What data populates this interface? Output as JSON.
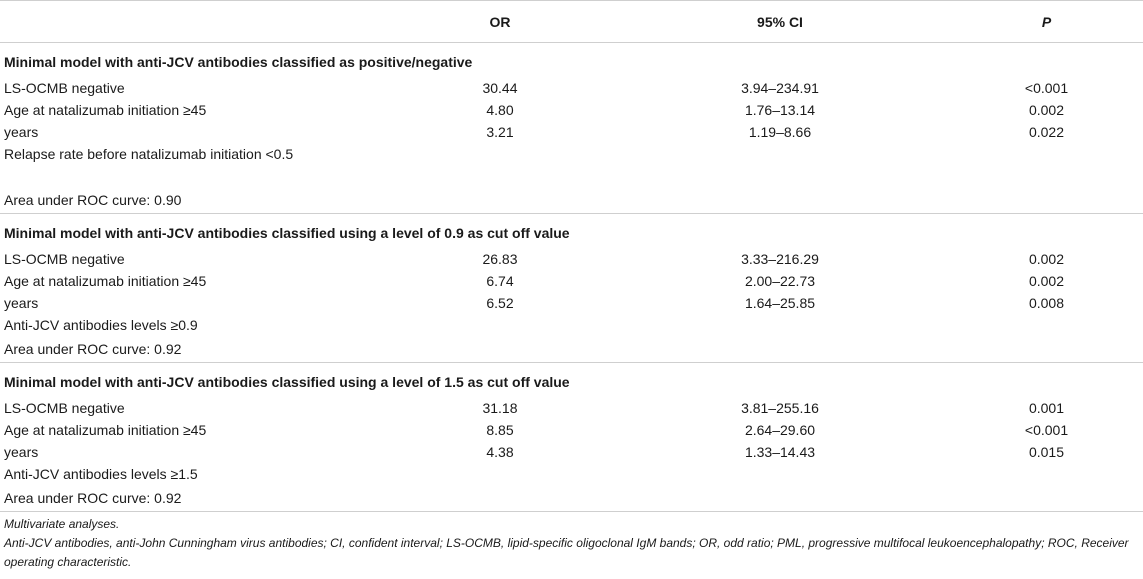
{
  "header": {
    "col0": "",
    "col1": "OR",
    "col2": "95% CI",
    "col3": "P"
  },
  "sections": [
    {
      "title": "Minimal model with anti-JCV antibodies classified as positive/negative",
      "rows": [
        {
          "label": "LS-OCMB negative",
          "or": "30.44",
          "ci": "3.94–234.91",
          "p": "<0.001"
        },
        {
          "label": "Age at natalizumab initiation ≥45",
          "or": "4.80",
          "ci": "1.76–13.14",
          "p": "0.002"
        },
        {
          "label": "years",
          "or": "3.21",
          "ci": "1.19–8.66",
          "p": "0.022"
        },
        {
          "label": "Relapse rate before natalizumab initiation <0.5",
          "or": "",
          "ci": "",
          "p": ""
        }
      ],
      "auc": "Area under ROC curve: 0.90"
    },
    {
      "title": "Minimal model with anti-JCV antibodies classified using a level of 0.9 as cut off value",
      "rows": [
        {
          "label": "LS-OCMB negative",
          "or": "26.83",
          "ci": "3.33–216.29",
          "p": "0.002"
        },
        {
          "label": "Age at natalizumab initiation ≥45",
          "or": "6.74",
          "ci": "2.00–22.73",
          "p": "0.002"
        },
        {
          "label": "years",
          "or": "6.52",
          "ci": "1.64–25.85",
          "p": "0.008"
        },
        {
          "label": "Anti-JCV antibodies levels ≥0.9",
          "or": "",
          "ci": "",
          "p": ""
        }
      ],
      "auc": "Area under ROC curve: 0.92"
    },
    {
      "title": "Minimal model with anti-JCV antibodies classified using a level of 1.5 as cut off value",
      "rows": [
        {
          "label": "LS-OCMB negative",
          "or": "31.18",
          "ci": "3.81–255.16",
          "p": "0.001"
        },
        {
          "label": "Age at natalizumab initiation ≥45",
          "or": "8.85",
          "ci": "2.64–29.60",
          "p": "<0.001"
        },
        {
          "label": "years",
          "or": "4.38",
          "ci": "1.33–14.43",
          "p": "0.015"
        },
        {
          "label": "Anti-JCV antibodies levels ≥1.5",
          "or": "",
          "ci": "",
          "p": ""
        }
      ],
      "auc": "Area under ROC curve: 0.92"
    }
  ],
  "notes": {
    "line1": "Multivariate analyses.",
    "line2": "Anti-JCV antibodies, anti-John Cunningham virus antibodies; CI, confident interval; LS-OCMB, lipid-specific oligoclonal IgM bands; OR, odd ratio; PML, progressive multifocal leukoencephalopathy; ROC, Receiver operating characteristic."
  }
}
